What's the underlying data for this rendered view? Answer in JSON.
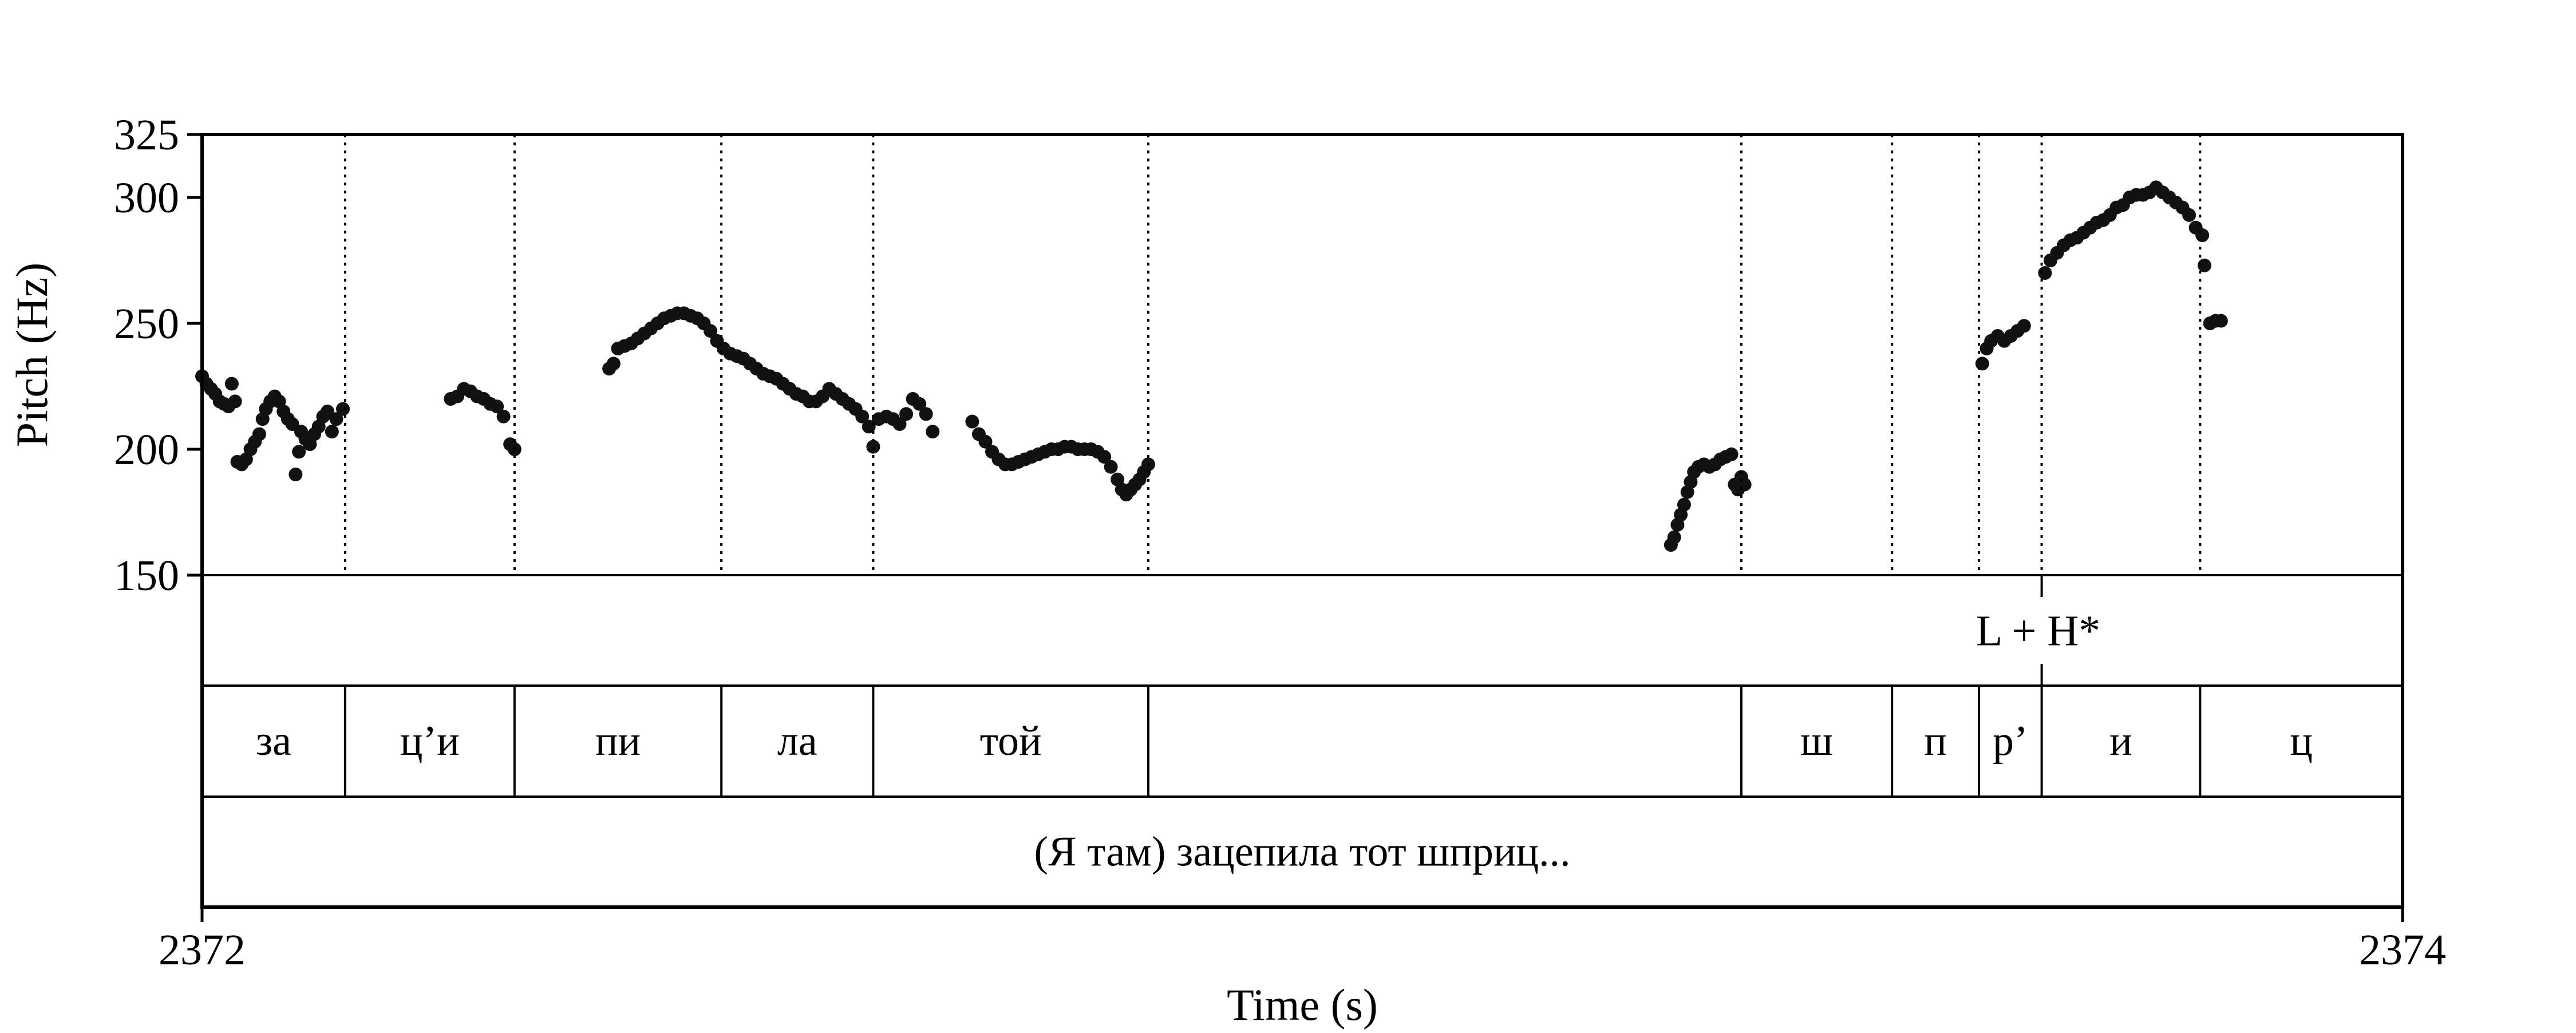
{
  "chart_data": {
    "type": "scatter",
    "xlabel": "Time (s)",
    "ylabel": "Pitch (Hz)",
    "xlim": [
      2372,
      2374
    ],
    "ylim": [
      150,
      325
    ],
    "xticks": [
      "2372",
      "2374"
    ],
    "yticks": [
      150,
      200,
      250,
      300,
      325
    ],
    "grid": false,
    "boundaries": [
      2372.13,
      2372.284,
      2372.472,
      2372.61,
      2372.86,
      2373.399,
      2373.536,
      2373.615,
      2373.672,
      2373.816
    ],
    "tiers": {
      "tones": [
        {
          "label": "L + H*",
          "x": 2373.672
        }
      ],
      "syllables": [
        {
          "label": "за",
          "start": 2372.0,
          "end": 2372.13
        },
        {
          "label": "ц’и",
          "start": 2372.13,
          "end": 2372.284
        },
        {
          "label": "пи",
          "start": 2372.284,
          "end": 2372.472
        },
        {
          "label": "ла",
          "start": 2372.472,
          "end": 2372.61
        },
        {
          "label": "той",
          "start": 2372.61,
          "end": 2372.86
        },
        {
          "label": "",
          "start": 2372.86,
          "end": 2373.399
        },
        {
          "label": "ш",
          "start": 2373.399,
          "end": 2373.536
        },
        {
          "label": "п",
          "start": 2373.536,
          "end": 2373.615
        },
        {
          "label": "р’",
          "start": 2373.615,
          "end": 2373.672
        },
        {
          "label": "и",
          "start": 2373.672,
          "end": 2373.816
        },
        {
          "label": "ц",
          "start": 2373.816,
          "end": 2374.0
        }
      ],
      "phrase": "(Я там) зацепила тот шприц..."
    },
    "points": [
      [
        2372.0,
        229
      ],
      [
        2372.004,
        226
      ],
      [
        2372.008,
        224
      ],
      [
        2372.012,
        222
      ],
      [
        2372.016,
        219
      ],
      [
        2372.02,
        218
      ],
      [
        2372.024,
        217
      ],
      [
        2372.027,
        226
      ],
      [
        2372.03,
        219
      ],
      [
        2372.032,
        195
      ],
      [
        2372.036,
        194
      ],
      [
        2372.04,
        196
      ],
      [
        2372.044,
        200
      ],
      [
        2372.048,
        203
      ],
      [
        2372.052,
        206
      ],
      [
        2372.055,
        212
      ],
      [
        2372.058,
        216
      ],
      [
        2372.062,
        219
      ],
      [
        2372.066,
        221
      ],
      [
        2372.07,
        219
      ],
      [
        2372.074,
        215
      ],
      [
        2372.078,
        212
      ],
      [
        2372.082,
        210
      ],
      [
        2372.085,
        190
      ],
      [
        2372.088,
        199
      ],
      [
        2372.09,
        207
      ],
      [
        2372.094,
        204
      ],
      [
        2372.098,
        202
      ],
      [
        2372.102,
        206
      ],
      [
        2372.106,
        209
      ],
      [
        2372.11,
        213
      ],
      [
        2372.114,
        215
      ],
      [
        2372.118,
        207
      ],
      [
        2372.122,
        212
      ],
      [
        2372.128,
        216
      ],
      [
        2372.226,
        220
      ],
      [
        2372.232,
        221
      ],
      [
        2372.238,
        224
      ],
      [
        2372.244,
        223
      ],
      [
        2372.25,
        221
      ],
      [
        2372.256,
        220
      ],
      [
        2372.262,
        218
      ],
      [
        2372.268,
        217
      ],
      [
        2372.274,
        213
      ],
      [
        2372.28,
        202
      ],
      [
        2372.284,
        200
      ],
      [
        2372.37,
        232
      ],
      [
        2372.374,
        234
      ],
      [
        2372.378,
        240
      ],
      [
        2372.384,
        241
      ],
      [
        2372.39,
        242
      ],
      [
        2372.396,
        244
      ],
      [
        2372.402,
        246
      ],
      [
        2372.408,
        248
      ],
      [
        2372.414,
        250
      ],
      [
        2372.42,
        252
      ],
      [
        2372.426,
        253
      ],
      [
        2372.432,
        254
      ],
      [
        2372.438,
        254
      ],
      [
        2372.444,
        253
      ],
      [
        2372.45,
        252
      ],
      [
        2372.456,
        250
      ],
      [
        2372.462,
        247
      ],
      [
        2372.468,
        243
      ],
      [
        2372.474,
        240
      ],
      [
        2372.48,
        238
      ],
      [
        2372.486,
        237
      ],
      [
        2372.492,
        236
      ],
      [
        2372.498,
        234
      ],
      [
        2372.504,
        232
      ],
      [
        2372.51,
        230
      ],
      [
        2372.516,
        229
      ],
      [
        2372.522,
        228
      ],
      [
        2372.528,
        226
      ],
      [
        2372.534,
        224
      ],
      [
        2372.54,
        222
      ],
      [
        2372.546,
        221
      ],
      [
        2372.552,
        219
      ],
      [
        2372.558,
        219
      ],
      [
        2372.564,
        221
      ],
      [
        2372.57,
        224
      ],
      [
        2372.576,
        222
      ],
      [
        2372.582,
        220
      ],
      [
        2372.588,
        218
      ],
      [
        2372.594,
        216
      ],
      [
        2372.6,
        213
      ],
      [
        2372.606,
        209
      ],
      [
        2372.61,
        201
      ],
      [
        2372.615,
        212
      ],
      [
        2372.622,
        213
      ],
      [
        2372.628,
        212
      ],
      [
        2372.634,
        210
      ],
      [
        2372.64,
        214
      ],
      [
        2372.646,
        220
      ],
      [
        2372.652,
        218
      ],
      [
        2372.658,
        214
      ],
      [
        2372.664,
        207
      ],
      [
        2372.7,
        211
      ],
      [
        2372.706,
        206
      ],
      [
        2372.712,
        203
      ],
      [
        2372.718,
        199
      ],
      [
        2372.724,
        196
      ],
      [
        2372.73,
        194
      ],
      [
        2372.736,
        194
      ],
      [
        2372.742,
        195
      ],
      [
        2372.748,
        196
      ],
      [
        2372.754,
        197
      ],
      [
        2372.76,
        198
      ],
      [
        2372.766,
        199
      ],
      [
        2372.772,
        200
      ],
      [
        2372.778,
        200
      ],
      [
        2372.784,
        201
      ],
      [
        2372.79,
        201
      ],
      [
        2372.796,
        200
      ],
      [
        2372.802,
        200
      ],
      [
        2372.808,
        200
      ],
      [
        2372.814,
        199
      ],
      [
        2372.82,
        197
      ],
      [
        2372.826,
        193
      ],
      [
        2372.832,
        188
      ],
      [
        2372.836,
        184
      ],
      [
        2372.84,
        182
      ],
      [
        2372.844,
        184
      ],
      [
        2372.848,
        186
      ],
      [
        2372.852,
        188
      ],
      [
        2372.856,
        191
      ],
      [
        2372.86,
        194
      ],
      [
        2373.335,
        162
      ],
      [
        2373.338,
        165
      ],
      [
        2373.341,
        170
      ],
      [
        2373.344,
        174
      ],
      [
        2373.347,
        178
      ],
      [
        2373.35,
        183
      ],
      [
        2373.353,
        187
      ],
      [
        2373.356,
        191
      ],
      [
        2373.36,
        193
      ],
      [
        2373.365,
        194
      ],
      [
        2373.37,
        193
      ],
      [
        2373.375,
        194
      ],
      [
        2373.38,
        196
      ],
      [
        2373.385,
        197
      ],
      [
        2373.39,
        198
      ],
      [
        2373.393,
        186
      ],
      [
        2373.396,
        184
      ],
      [
        2373.399,
        189
      ],
      [
        2373.402,
        186
      ],
      [
        2373.618,
        234
      ],
      [
        2373.622,
        240
      ],
      [
        2373.626,
        243
      ],
      [
        2373.632,
        245
      ],
      [
        2373.638,
        243
      ],
      [
        2373.644,
        245
      ],
      [
        2373.65,
        247
      ],
      [
        2373.656,
        249
      ],
      [
        2373.675,
        270
      ],
      [
        2373.68,
        275
      ],
      [
        2373.686,
        278
      ],
      [
        2373.692,
        281
      ],
      [
        2373.698,
        283
      ],
      [
        2373.704,
        284
      ],
      [
        2373.71,
        286
      ],
      [
        2373.716,
        288
      ],
      [
        2373.722,
        290
      ],
      [
        2373.728,
        291
      ],
      [
        2373.734,
        293
      ],
      [
        2373.74,
        296
      ],
      [
        2373.746,
        297
      ],
      [
        2373.752,
        300
      ],
      [
        2373.758,
        301
      ],
      [
        2373.764,
        301
      ],
      [
        2373.77,
        302
      ],
      [
        2373.776,
        304
      ],
      [
        2373.782,
        302
      ],
      [
        2373.788,
        300
      ],
      [
        2373.794,
        298
      ],
      [
        2373.8,
        296
      ],
      [
        2373.806,
        293
      ],
      [
        2373.812,
        288
      ],
      [
        2373.818,
        285
      ],
      [
        2373.82,
        273
      ],
      [
        2373.825,
        250
      ],
      [
        2373.83,
        251
      ],
      [
        2373.835,
        251
      ]
    ]
  }
}
